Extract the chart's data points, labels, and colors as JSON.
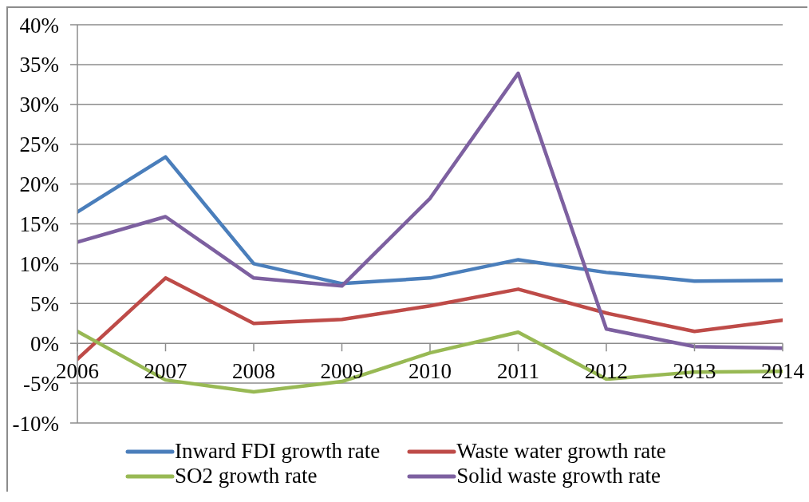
{
  "chart_data": {
    "type": "line",
    "categories": [
      "2006",
      "2007",
      "2008",
      "2009",
      "2010",
      "2011",
      "2012",
      "2013",
      "2014"
    ],
    "series": [
      {
        "name": "Inward FDI growth rate",
        "color": "#4a7ebb",
        "values": [
          16.5,
          23.4,
          10.0,
          7.5,
          8.2,
          10.5,
          8.9,
          7.8,
          7.9
        ]
      },
      {
        "name": "Waste water growth rate",
        "color": "#be4b48",
        "values": [
          -2.0,
          8.2,
          2.5,
          3.0,
          4.7,
          6.8,
          3.8,
          1.5,
          2.9
        ]
      },
      {
        "name": "SO2 growth rate",
        "color": "#98b954",
        "values": [
          1.5,
          -4.6,
          -6.1,
          -4.8,
          -1.2,
          1.4,
          -4.5,
          -3.6,
          -3.5
        ]
      },
      {
        "name": "Solid waste growth rate",
        "color": "#7d60a0",
        "values": [
          12.7,
          15.9,
          8.2,
          7.2,
          18.2,
          33.9,
          1.8,
          -0.4,
          -0.6
        ]
      }
    ],
    "ylim": [
      -10,
      40
    ],
    "yticks": [
      {
        "value": -10,
        "label": "-10%"
      },
      {
        "value": -5,
        "label": "-5%"
      },
      {
        "value": 0,
        "label": "0%"
      },
      {
        "value": 5,
        "label": "5%"
      },
      {
        "value": 10,
        "label": "10%"
      },
      {
        "value": 15,
        "label": "15%"
      },
      {
        "value": 20,
        "label": "20%"
      },
      {
        "value": 25,
        "label": "25%"
      },
      {
        "value": 30,
        "label": "30%"
      },
      {
        "value": 35,
        "label": "35%"
      },
      {
        "value": 40,
        "label": "40%"
      }
    ],
    "grid": "y",
    "legend": "bottom",
    "marker": "none"
  }
}
